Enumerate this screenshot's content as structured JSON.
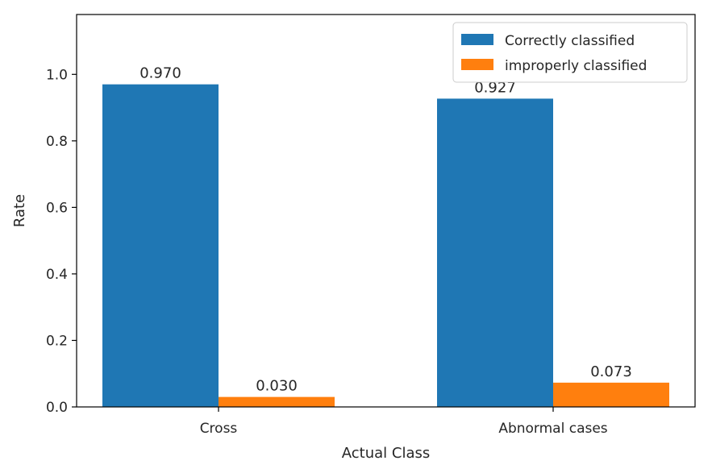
{
  "chart_data": {
    "type": "bar",
    "title": "",
    "xlabel": "Actual Class",
    "ylabel": "Rate",
    "ylim": [
      0,
      1.18
    ],
    "yticks": [
      0.0,
      0.2,
      0.4,
      0.6,
      0.8,
      1.0
    ],
    "ytick_labels": [
      "0.0",
      "0.2",
      "0.4",
      "0.6",
      "0.8",
      "1.0"
    ],
    "categories": [
      "Cross",
      "Abnormal cases"
    ],
    "series": [
      {
        "name": "Correctly classified",
        "color": "#1f77b4",
        "values": [
          0.97,
          0.927
        ],
        "value_labels": [
          "0.970",
          "0.927"
        ]
      },
      {
        "name": "improperly classified",
        "color": "#ff7f0e",
        "values": [
          0.03,
          0.073
        ],
        "value_labels": [
          "0.030",
          "0.073"
        ]
      }
    ],
    "grid": false,
    "legend_position": "top-right"
  }
}
